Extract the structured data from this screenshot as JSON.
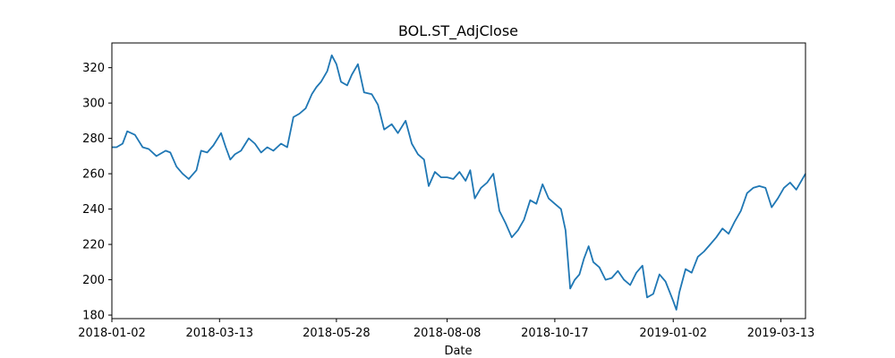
{
  "chart_data": {
    "type": "line",
    "title": "BOL.ST_AdjClose",
    "xlabel": "Date",
    "ylabel": "",
    "ylim": [
      178,
      334
    ],
    "xlim": [
      "2018-01-02",
      "2019-03-29"
    ],
    "grid": false,
    "legend": "none",
    "y_ticks": [
      180,
      200,
      220,
      240,
      260,
      280,
      300,
      320
    ],
    "x_ticks": [
      "2018-01-02",
      "2018-03-13",
      "2018-05-28",
      "2018-08-08",
      "2018-10-17",
      "2019-01-02",
      "2019-03-13"
    ],
    "series": [
      {
        "color": "#1f77b4",
        "points": [
          [
            "2018-01-02",
            275
          ],
          [
            "2018-01-05",
            275
          ],
          [
            "2018-01-09",
            277
          ],
          [
            "2018-01-12",
            284
          ],
          [
            "2018-01-17",
            282
          ],
          [
            "2018-01-22",
            275
          ],
          [
            "2018-01-26",
            274
          ],
          [
            "2018-01-31",
            270
          ],
          [
            "2018-02-06",
            273
          ],
          [
            "2018-02-09",
            272
          ],
          [
            "2018-02-13",
            264
          ],
          [
            "2018-02-17",
            260
          ],
          [
            "2018-02-21",
            257
          ],
          [
            "2018-02-26",
            262
          ],
          [
            "2018-03-01",
            273
          ],
          [
            "2018-03-05",
            272
          ],
          [
            "2018-03-09",
            276
          ],
          [
            "2018-03-14",
            283
          ],
          [
            "2018-03-17",
            275
          ],
          [
            "2018-03-20",
            268
          ],
          [
            "2018-03-23",
            271
          ],
          [
            "2018-03-27",
            273
          ],
          [
            "2018-04-01",
            280
          ],
          [
            "2018-04-05",
            277
          ],
          [
            "2018-04-09",
            272
          ],
          [
            "2018-04-13",
            275
          ],
          [
            "2018-04-17",
            273
          ],
          [
            "2018-04-22",
            277
          ],
          [
            "2018-04-26",
            275
          ],
          [
            "2018-04-30",
            292
          ],
          [
            "2018-05-04",
            294
          ],
          [
            "2018-05-08",
            297
          ],
          [
            "2018-05-12",
            305
          ],
          [
            "2018-05-15",
            309
          ],
          [
            "2018-05-18",
            312
          ],
          [
            "2018-05-22",
            318
          ],
          [
            "2018-05-25",
            327
          ],
          [
            "2018-05-28",
            322
          ],
          [
            "2018-05-31",
            312
          ],
          [
            "2018-06-04",
            310
          ],
          [
            "2018-06-07",
            316
          ],
          [
            "2018-06-11",
            322
          ],
          [
            "2018-06-15",
            306
          ],
          [
            "2018-06-20",
            305
          ],
          [
            "2018-06-24",
            299
          ],
          [
            "2018-06-28",
            285
          ],
          [
            "2018-07-03",
            288
          ],
          [
            "2018-07-07",
            283
          ],
          [
            "2018-07-12",
            290
          ],
          [
            "2018-07-16",
            277
          ],
          [
            "2018-07-20",
            271
          ],
          [
            "2018-07-24",
            268
          ],
          [
            "2018-07-27",
            253
          ],
          [
            "2018-07-31",
            261
          ],
          [
            "2018-08-04",
            258
          ],
          [
            "2018-08-08",
            258
          ],
          [
            "2018-08-12",
            257
          ],
          [
            "2018-08-16",
            261
          ],
          [
            "2018-08-20",
            256
          ],
          [
            "2018-08-23",
            262
          ],
          [
            "2018-08-26",
            246
          ],
          [
            "2018-08-30",
            252
          ],
          [
            "2018-09-03",
            255
          ],
          [
            "2018-09-07",
            260
          ],
          [
            "2018-09-11",
            239
          ],
          [
            "2018-09-15",
            232
          ],
          [
            "2018-09-19",
            224
          ],
          [
            "2018-09-23",
            228
          ],
          [
            "2018-09-27",
            234
          ],
          [
            "2018-10-01",
            245
          ],
          [
            "2018-10-05",
            243
          ],
          [
            "2018-10-09",
            254
          ],
          [
            "2018-10-13",
            246
          ],
          [
            "2018-10-17",
            243
          ],
          [
            "2018-10-21",
            240
          ],
          [
            "2018-10-24",
            228
          ],
          [
            "2018-10-27",
            195
          ],
          [
            "2018-10-30",
            200
          ],
          [
            "2018-11-02",
            203
          ],
          [
            "2018-11-05",
            212
          ],
          [
            "2018-11-08",
            219
          ],
          [
            "2018-11-11",
            210
          ],
          [
            "2018-11-15",
            207
          ],
          [
            "2018-11-19",
            200
          ],
          [
            "2018-11-23",
            201
          ],
          [
            "2018-11-27",
            205
          ],
          [
            "2018-12-01",
            200
          ],
          [
            "2018-12-05",
            197
          ],
          [
            "2018-12-09",
            204
          ],
          [
            "2018-12-13",
            208
          ],
          [
            "2018-12-16",
            190
          ],
          [
            "2018-12-20",
            192
          ],
          [
            "2018-12-24",
            203
          ],
          [
            "2018-12-28",
            199
          ],
          [
            "2019-01-02",
            188
          ],
          [
            "2019-01-04",
            183
          ],
          [
            "2019-01-06",
            193
          ],
          [
            "2019-01-10",
            206
          ],
          [
            "2019-01-14",
            204
          ],
          [
            "2019-01-18",
            213
          ],
          [
            "2019-01-22",
            216
          ],
          [
            "2019-01-26",
            220
          ],
          [
            "2019-01-30",
            224
          ],
          [
            "2019-02-03",
            229
          ],
          [
            "2019-02-07",
            226
          ],
          [
            "2019-02-11",
            233
          ],
          [
            "2019-02-15",
            239
          ],
          [
            "2019-02-19",
            249
          ],
          [
            "2019-02-23",
            252
          ],
          [
            "2019-02-27",
            253
          ],
          [
            "2019-03-03",
            252
          ],
          [
            "2019-03-07",
            241
          ],
          [
            "2019-03-11",
            246
          ],
          [
            "2019-03-15",
            252
          ],
          [
            "2019-03-19",
            255
          ],
          [
            "2019-03-23",
            251
          ],
          [
            "2019-03-29",
            260
          ]
        ]
      }
    ]
  }
}
